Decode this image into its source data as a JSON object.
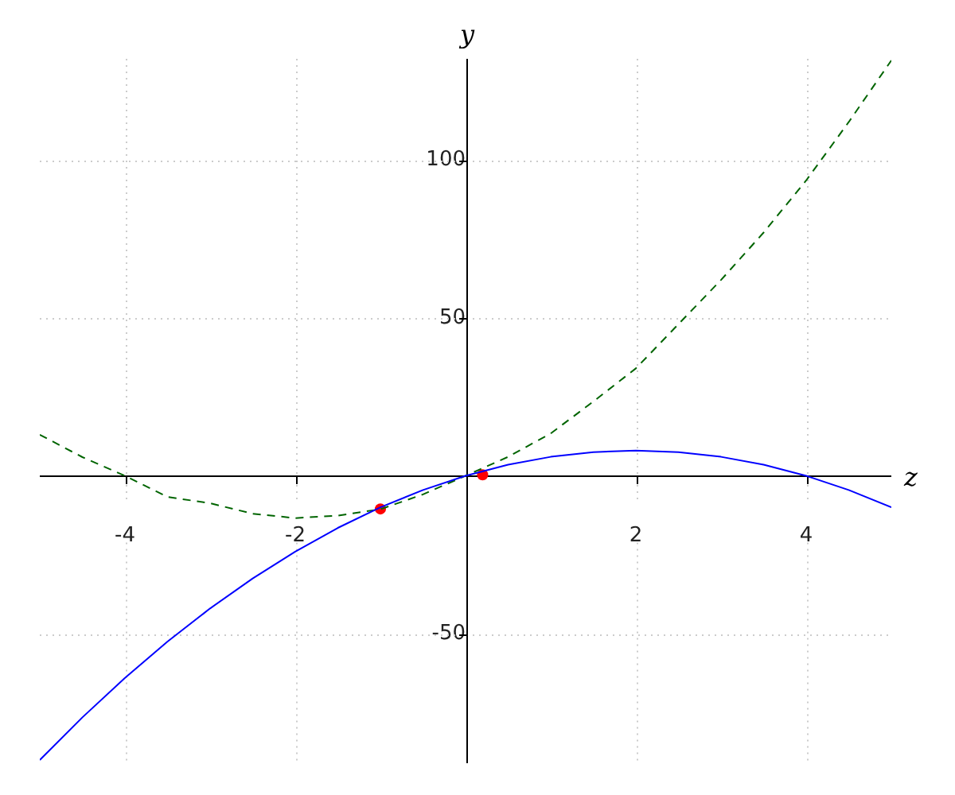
{
  "chart_data": {
    "type": "line",
    "xlabel": "z",
    "ylabel": "y",
    "xlim": [
      -5,
      5
    ],
    "ylim": [
      -91,
      132
    ],
    "xticks": [
      -4,
      -2,
      2,
      4
    ],
    "yticks": [
      -50,
      50,
      100
    ],
    "grid": true,
    "legend": false,
    "marker": "none",
    "series": [
      {
        "color": "#0000ff",
        "line_style": "solid",
        "x": [
          -5,
          -4.5,
          -4,
          -3.5,
          -3,
          -2.5,
          -2,
          -1.5,
          -1,
          -0.5,
          0,
          0.5,
          1,
          1.5,
          2,
          2.5,
          3,
          3.5,
          4,
          4.5,
          5
        ],
        "values": [
          -90,
          -76.5,
          -64,
          -52.5,
          -42,
          -32.5,
          -24,
          -16.5,
          -10,
          -4.5,
          0,
          3.5,
          6,
          7.5,
          8,
          7.5,
          6,
          3.5,
          0,
          -4.5,
          -10
        ]
      },
      {
        "color": "#006400",
        "line_style": "dashed",
        "x": [
          -5,
          -4.5,
          -4,
          -3.5,
          -3,
          -2.5,
          -2,
          -1.5,
          -1,
          -0.5,
          0,
          0.5,
          1,
          1.5,
          2,
          2.5,
          3,
          3.5,
          4,
          4.5,
          5
        ],
        "values": [
          13,
          5.9,
          0,
          -6.7,
          -8.7,
          -12,
          -13.4,
          -12.6,
          -10.6,
          -5.9,
          0,
          6,
          13.4,
          23.5,
          34,
          48,
          62,
          77,
          93.5,
          112,
          131.5
        ]
      },
      {
        "type": "scatter",
        "marker": "circle",
        "color": "#ff0000",
        "x": [
          -1,
          0.2
        ],
        "values": [
          -10.5,
          0.3
        ]
      }
    ]
  }
}
